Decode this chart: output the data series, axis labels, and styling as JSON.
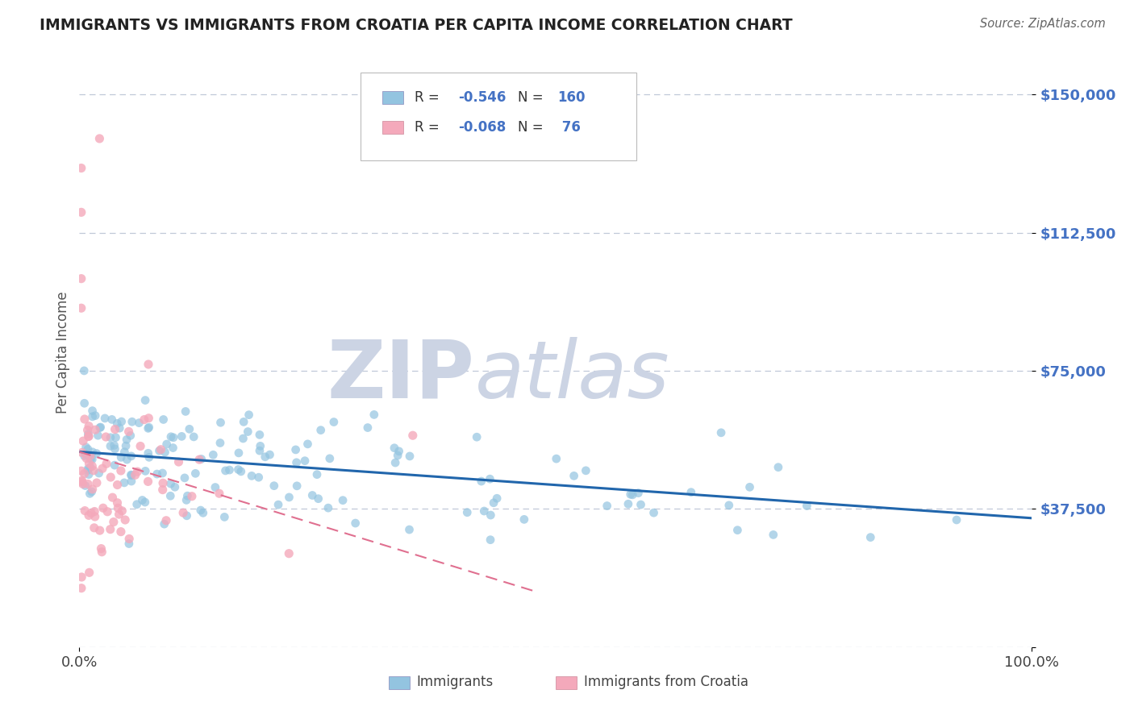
{
  "title": "IMMIGRANTS VS IMMIGRANTS FROM CROATIA PER CAPITA INCOME CORRELATION CHART",
  "source_text": "Source: ZipAtlas.com",
  "ylabel": "Per Capita Income",
  "xlim": [
    0,
    1.0
  ],
  "ylim": [
    0,
    160000
  ],
  "yticks": [
    0,
    37500,
    75000,
    112500,
    150000
  ],
  "ytick_labels": [
    "",
    "$37,500",
    "$75,000",
    "$112,500",
    "$150,000"
  ],
  "color_blue_scatter": "#93c4e0",
  "color_blue_line": "#2166ac",
  "color_pink_scatter": "#f4a9bb",
  "color_pink_line": "#e07090",
  "color_title": "#222222",
  "color_ytick": "#4472c4",
  "color_grid": "#c0c8d8",
  "watermark_zip_color": "#ccd4e4",
  "watermark_atlas_color": "#ccd4e4",
  "background_color": "#ffffff",
  "r1": -0.546,
  "n1": 160,
  "r2": -0.068,
  "n2": 76,
  "blue_line_y0": 53000,
  "blue_line_y1": 35000,
  "pink_line_y0": 53000,
  "pink_line_y1": 15000,
  "pink_line_x1": 0.48
}
